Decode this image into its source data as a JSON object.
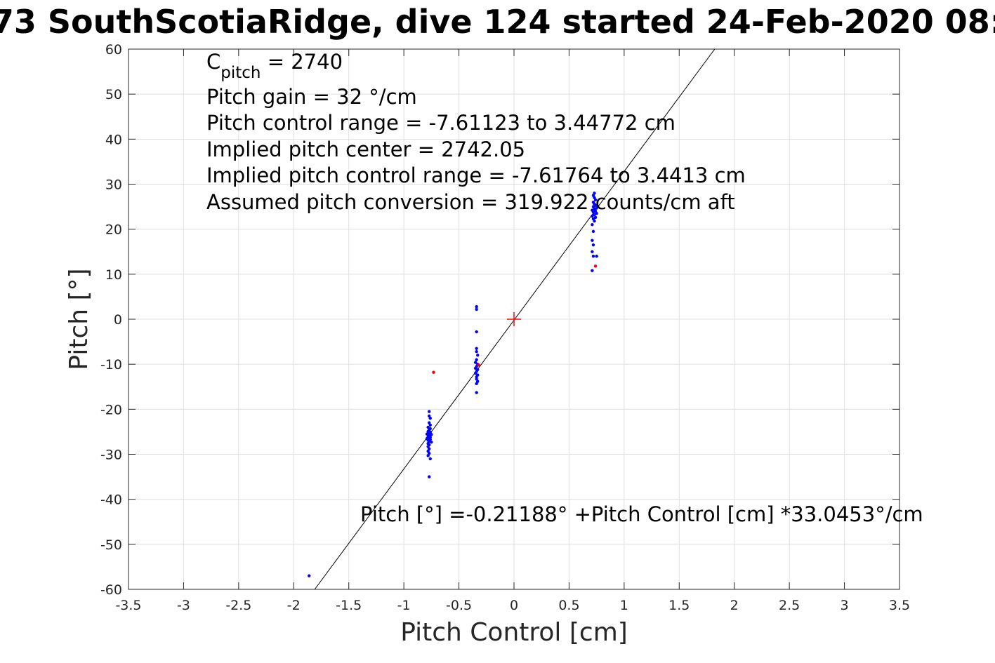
{
  "chart_data": {
    "type": "scatter",
    "title": "73 SouthScotiaRidge, dive 124 started 24-Feb-2020 08:",
    "xlabel": "Pitch Control [cm]",
    "ylabel": "Pitch [°]",
    "xlim": [
      -3.5,
      3.5
    ],
    "ylim": [
      -60,
      60
    ],
    "xticks": [
      -3.5,
      -3,
      -2.5,
      -2,
      -1.5,
      -1,
      -0.5,
      0,
      0.5,
      1,
      1.5,
      2,
      2.5,
      3,
      3.5
    ],
    "xtick_labels": [
      "-3.5",
      "-3",
      "-2.5",
      "-2",
      "-1.5",
      "-1",
      "-0.5",
      "0",
      "0.5",
      "1",
      "1.5",
      "2",
      "2.5",
      "3",
      "3.5"
    ],
    "yticks": [
      -60,
      -50,
      -40,
      -30,
      -20,
      -10,
      0,
      10,
      20,
      30,
      40,
      50,
      60
    ],
    "ytick_labels": [
      "-60",
      "-50",
      "-40",
      "-30",
      "-20",
      "-10",
      "0",
      "10",
      "20",
      "30",
      "40",
      "50",
      "60"
    ],
    "grid": true,
    "annotations": {
      "c_pitch_symbol": "C",
      "c_pitch_subscript": "pitch",
      "c_pitch_value": " = 2740",
      "pitch_gain": "Pitch gain = 32 °/cm",
      "pitch_control_range": "Pitch control range = -7.61123 to 3.44772 cm",
      "implied_pitch_center": "Implied pitch center = 2742.05",
      "implied_control_range": "Implied pitch control range = -7.61764 to 3.4413 cm",
      "assumed_conversion": "Assumed pitch conversion = 319.922 counts/cm aft",
      "fit_equation": "Pitch [°] =-0.21188° +Pitch Control [cm] *33.0453°/cm"
    },
    "fit_line": {
      "intercept": -0.21188,
      "slope": 33.0453,
      "color": "#000000"
    },
    "center_marker": {
      "x": 0,
      "y": 0,
      "color": "#ff0000"
    },
    "series": [
      {
        "color": "#0000ff",
        "points": [
          [
            -1.86,
            -57.0
          ],
          [
            -0.77,
            -20.5
          ],
          [
            -0.77,
            -21.5
          ],
          [
            -0.76,
            -22.0
          ],
          [
            -0.77,
            -23.0
          ],
          [
            -0.76,
            -23.5
          ],
          [
            -0.78,
            -24.0
          ],
          [
            -0.76,
            -24.3
          ],
          [
            -0.77,
            -24.6
          ],
          [
            -0.78,
            -24.9
          ],
          [
            -0.76,
            -25.1
          ],
          [
            -0.77,
            -25.3
          ],
          [
            -0.79,
            -25.5
          ],
          [
            -0.75,
            -25.6
          ],
          [
            -0.77,
            -25.8
          ],
          [
            -0.78,
            -26.0
          ],
          [
            -0.76,
            -26.2
          ],
          [
            -0.77,
            -26.4
          ],
          [
            -0.79,
            -26.5
          ],
          [
            -0.76,
            -26.7
          ],
          [
            -0.78,
            -26.9
          ],
          [
            -0.77,
            -27.1
          ],
          [
            -0.75,
            -27.3
          ],
          [
            -0.78,
            -27.6
          ],
          [
            -0.77,
            -27.9
          ],
          [
            -0.78,
            -28.3
          ],
          [
            -0.77,
            -28.8
          ],
          [
            -0.78,
            -29.3
          ],
          [
            -0.77,
            -29.8
          ],
          [
            -0.78,
            -30.3
          ],
          [
            -0.76,
            -31.0
          ],
          [
            -0.77,
            -35.0
          ],
          [
            -0.34,
            2.8
          ],
          [
            -0.34,
            2.2
          ],
          [
            -0.34,
            -2.8
          ],
          [
            -0.34,
            -6.5
          ],
          [
            -0.34,
            -7.2
          ],
          [
            -0.33,
            -8.0
          ],
          [
            -0.34,
            -9.0
          ],
          [
            -0.35,
            -9.6
          ],
          [
            -0.33,
            -10.0
          ],
          [
            -0.34,
            -10.5
          ],
          [
            -0.35,
            -10.9
          ],
          [
            -0.33,
            -11.2
          ],
          [
            -0.34,
            -11.6
          ],
          [
            -0.35,
            -12.0
          ],
          [
            -0.33,
            -12.4
          ],
          [
            -0.34,
            -12.8
          ],
          [
            -0.34,
            -13.3
          ],
          [
            -0.33,
            -13.8
          ],
          [
            -0.34,
            -14.3
          ],
          [
            -0.34,
            -16.3
          ],
          [
            0.71,
            10.8
          ],
          [
            0.72,
            14.0
          ],
          [
            0.71,
            15.0
          ],
          [
            0.72,
            16.5
          ],
          [
            0.71,
            17.5
          ],
          [
            0.72,
            19.5
          ],
          [
            0.71,
            21.0
          ],
          [
            0.73,
            21.8
          ],
          [
            0.72,
            22.3
          ],
          [
            0.74,
            22.6
          ],
          [
            0.71,
            22.9
          ],
          [
            0.73,
            23.2
          ],
          [
            0.75,
            23.5
          ],
          [
            0.72,
            23.8
          ],
          [
            0.74,
            24.0
          ],
          [
            0.71,
            24.2
          ],
          [
            0.73,
            24.5
          ],
          [
            0.75,
            24.7
          ],
          [
            0.72,
            25.0
          ],
          [
            0.74,
            25.3
          ],
          [
            0.73,
            25.6
          ],
          [
            0.72,
            26.0
          ],
          [
            0.74,
            26.5
          ],
          [
            0.73,
            27.0
          ],
          [
            0.72,
            27.5
          ],
          [
            0.73,
            28.0
          ],
          [
            0.75,
            14.0
          ]
        ]
      },
      {
        "color": "#ff0000",
        "points": [
          [
            -0.73,
            -11.8
          ],
          [
            -0.32,
            -10.2
          ],
          [
            0.74,
            11.8
          ]
        ]
      }
    ]
  }
}
